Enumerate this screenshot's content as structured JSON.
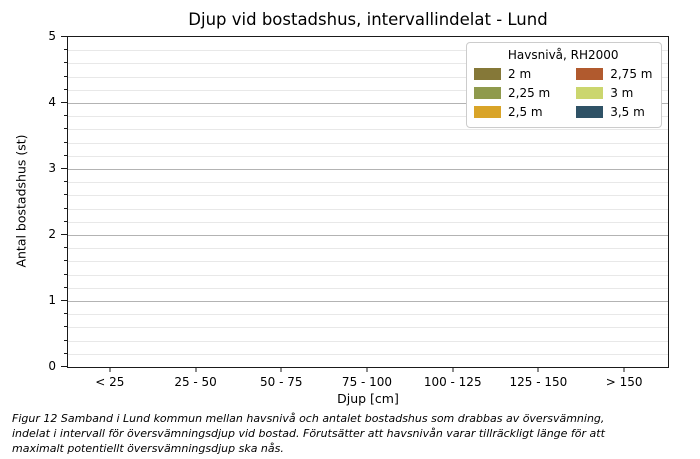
{
  "figure": {
    "caption_lines": [
      "Figur 12 Samband i Lund kommun mellan havsnivå och antalet bostadshus som drabbas av översvämning,",
      "indelat i intervall för översvämningsdjup vid bostad. Förutsätter att havsnivån varar tillräckligt länge för att",
      "maximalt potentiellt översvämningsdjup ska nås."
    ]
  },
  "chart_data": {
    "type": "bar",
    "title": "Djup vid bostadshus, intervallindelat - Lund",
    "xlabel": "Djup [cm]",
    "ylabel": "Antal bostadshus (st)",
    "categories": [
      "< 25",
      "25 - 50",
      "50 - 75",
      "75 - 100",
      "100 - 125",
      "125 - 150",
      "> 150"
    ],
    "series": [
      {
        "name": "2 m",
        "color": "#857838",
        "values": [
          0,
          0,
          0,
          0,
          0,
          0,
          0
        ]
      },
      {
        "name": "2,25 m",
        "color": "#8f9a4d",
        "values": [
          0,
          0,
          0,
          0,
          0,
          0,
          0
        ]
      },
      {
        "name": "2,5 m",
        "color": "#d9a428",
        "values": [
          0,
          0,
          0,
          0,
          0,
          0,
          0
        ]
      },
      {
        "name": "2,75 m",
        "color": "#b15a2e",
        "values": [
          0,
          0,
          0,
          0,
          0,
          0,
          0
        ]
      },
      {
        "name": "3 m",
        "color": "#cbd66e",
        "values": [
          0,
          0,
          0,
          0,
          0,
          0,
          0
        ]
      },
      {
        "name": "3,5 m",
        "color": "#2f5266",
        "values": [
          0,
          0,
          0,
          0,
          0,
          0,
          0
        ]
      }
    ],
    "ylim": [
      0,
      5
    ],
    "yticks": [
      0,
      1,
      2,
      3,
      4,
      5
    ],
    "minor_tick_step": 0.2,
    "grid": "major and minor horizontal gridlines",
    "legend": {
      "title": "Havsnivå, RH2000",
      "position": "upper right",
      "ncol": 2
    },
    "style": {
      "major_grid_color": "#b3b3b3",
      "minor_grid_color": "#e8e8e8",
      "spine_color": "#1a1a1a",
      "legend_border_color": "#cccccc",
      "background": "#ffffff"
    }
  }
}
